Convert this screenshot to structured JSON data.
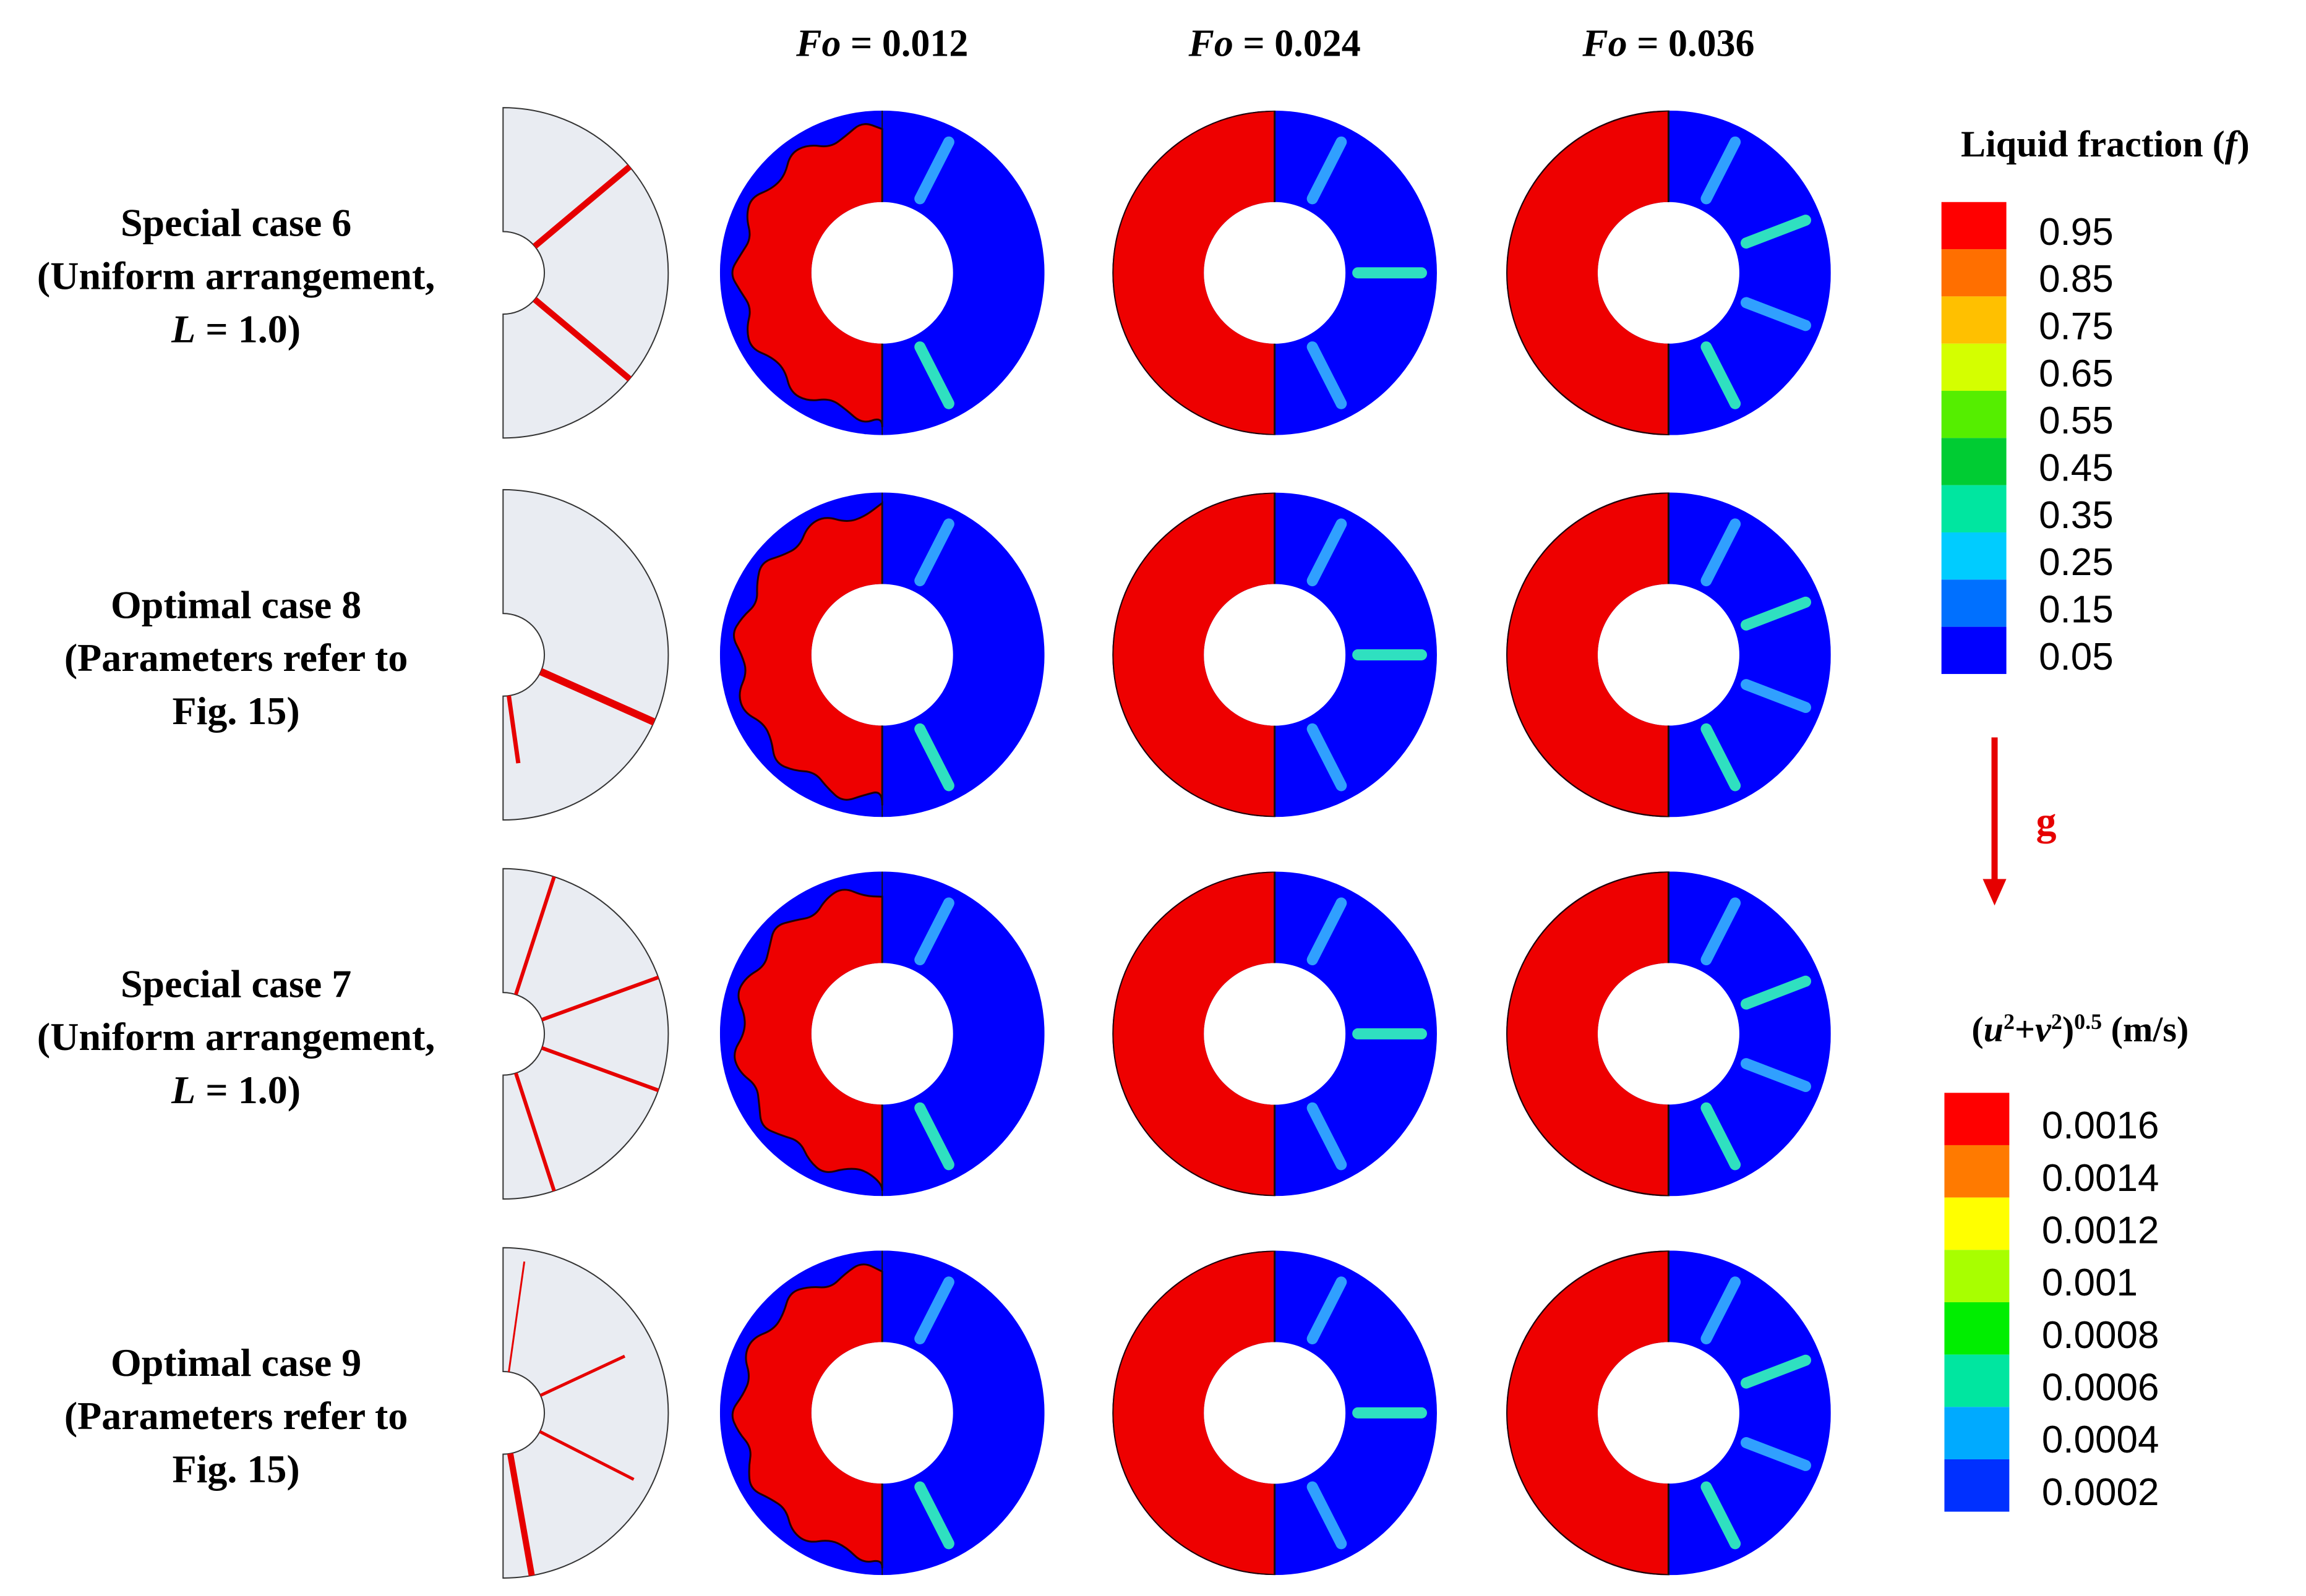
{
  "columns": [
    {
      "var": "Fo",
      "value": " = 0.012"
    },
    {
      "var": "Fo",
      "value": " = 0.024"
    },
    {
      "var": "Fo",
      "value": " = 0.036"
    }
  ],
  "rows": [
    {
      "lines": [
        {
          "t": "Special case 6"
        },
        {
          "t": "(Uniform arrangement,"
        },
        {
          "t": "L",
          "italic": true,
          "rest": " = 1.0)"
        }
      ],
      "fins": [
        {
          "deg": -40,
          "len": 1.0,
          "w": 10
        },
        {
          "deg": 40,
          "len": 1.0,
          "w": 10
        }
      ]
    },
    {
      "lines": [
        {
          "t": "Optimal case 8"
        },
        {
          "t": "(Parameters refer to"
        },
        {
          "t": "Fig. 15)"
        }
      ],
      "fins": [
        {
          "deg": 24,
          "len": 1.0,
          "w": 12
        },
        {
          "deg": 82,
          "len": 0.55,
          "w": 7
        }
      ]
    },
    {
      "lines": [
        {
          "t": "Special case 7"
        },
        {
          "t": "(Uniform arrangement,"
        },
        {
          "t": "L",
          "italic": true,
          "rest": " = 1.0)"
        }
      ],
      "fins": [
        {
          "deg": -72,
          "len": 1.0,
          "w": 6
        },
        {
          "deg": -20,
          "len": 1.0,
          "w": 6
        },
        {
          "deg": 20,
          "len": 1.0,
          "w": 6
        },
        {
          "deg": 72,
          "len": 1.0,
          "w": 6
        }
      ]
    },
    {
      "lines": [
        {
          "t": "Optimal case 9"
        },
        {
          "t": "(Parameters refer to"
        },
        {
          "t": "Fig. 15)"
        }
      ],
      "fins": [
        {
          "deg": -82,
          "len": 0.9,
          "w": 3
        },
        {
          "deg": -25,
          "len": 0.75,
          "w": 5
        },
        {
          "deg": 27,
          "len": 0.85,
          "w": 5
        },
        {
          "deg": 80,
          "len": 1.0,
          "w": 10
        }
      ]
    }
  ],
  "legend_liquid": {
    "title_pre": "Liquid fraction (",
    "title_var": "f",
    "title_post": ")",
    "labels": [
      "0.95",
      "0.85",
      "0.75",
      "0.65",
      "0.55",
      "0.45",
      "0.35",
      "0.25",
      "0.15",
      "0.05"
    ],
    "colors": [
      "#ff0000",
      "#ff6f00",
      "#ffc000",
      "#d4ff00",
      "#55ee00",
      "#00cc33",
      "#00e6a0",
      "#00ccff",
      "#0070ff",
      "#0000ff"
    ]
  },
  "legend_velocity": {
    "title_u": "u",
    "title_v": "v",
    "title_exp": "2",
    "title_outer_exp": "0.5",
    "title_unit": " (m/s)",
    "labels": [
      "0.0016",
      "0.0014",
      "0.0012",
      "0.001",
      "0.0008",
      "0.0006",
      "0.0004",
      "0.0002"
    ],
    "colors": [
      "#ff0000",
      "#ff7a00",
      "#ffff00",
      "#a8ff00",
      "#00ee00",
      "#00e6a0",
      "#00aaff",
      "#0030ff"
    ]
  },
  "gravity": {
    "label": "g",
    "color": "#e60000"
  },
  "colors": {
    "solid": "#0000ff",
    "liquid": "#ee0000",
    "fin": "#e60000",
    "domain": "#e9ecf2"
  }
}
